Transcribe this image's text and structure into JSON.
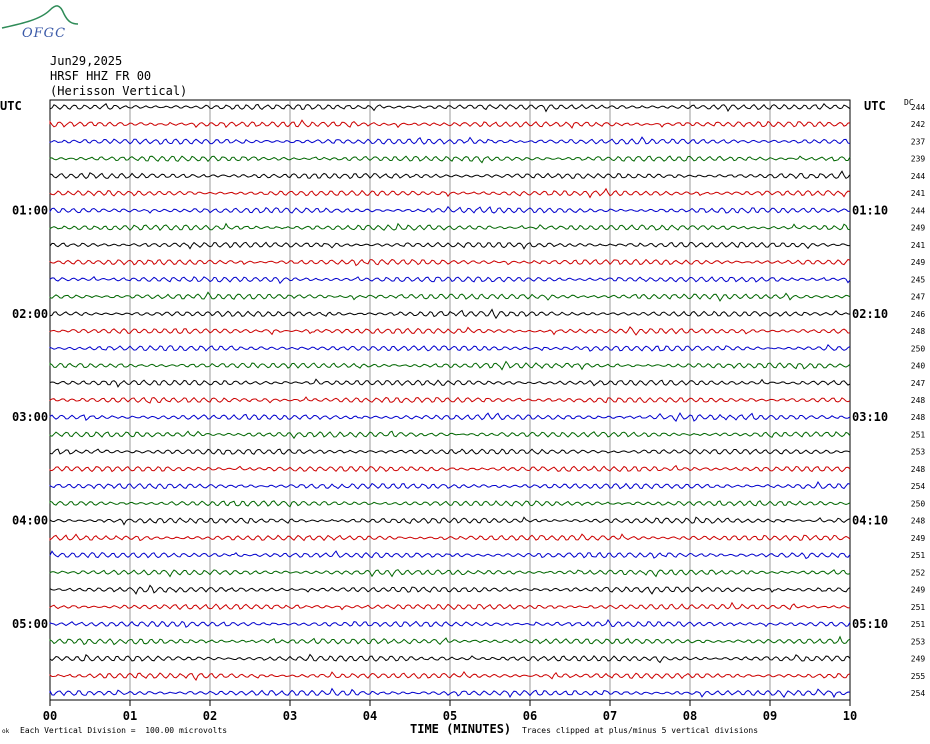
{
  "header": {
    "logo_text": "OFGC",
    "date": "Jun29,2025",
    "station": "HRSF HHZ FR 00",
    "location": "(Herisson Vertical)",
    "left_tz": "UTC",
    "right_tz": "UTC",
    "dc_label": "DC"
  },
  "footer": {
    "division_note": "Each Vertical Division =  100.00 microvolts",
    "clip_note": "Traces clipped at plus/minus 5 vertical divisions",
    "corner_mark": "ok"
  },
  "colors": {
    "trace_cycle": [
      "#000000",
      "#cc0000",
      "#0000cc",
      "#006600"
    ],
    "grid": "#808080",
    "logo": "#2e8b57"
  },
  "chart_data": {
    "type": "line",
    "title": "",
    "xlabel": "TIME (MINUTES)",
    "x_ticks": [
      "00",
      "01",
      "02",
      "03",
      "04",
      "05",
      "06",
      "07",
      "08",
      "09",
      "10"
    ],
    "xlim": [
      0,
      10
    ],
    "row_interval_minutes": 10,
    "left_time_labels": [
      {
        "row": 6,
        "label": "01:00"
      },
      {
        "row": 12,
        "label": "02:00"
      },
      {
        "row": 18,
        "label": "03:00"
      },
      {
        "row": 24,
        "label": "04:00"
      },
      {
        "row": 30,
        "label": "05:00"
      }
    ],
    "right_time_labels": [
      {
        "row": 6,
        "label": "01:10"
      },
      {
        "row": 12,
        "label": "02:10"
      },
      {
        "row": 18,
        "label": "03:10"
      },
      {
        "row": 24,
        "label": "04:10"
      },
      {
        "row": 30,
        "label": "05:10"
      }
    ],
    "dc_offsets": [
      244,
      242,
      237,
      239,
      244,
      241,
      244,
      249,
      241,
      249,
      245,
      247,
      246,
      248,
      250,
      240,
      247,
      248,
      248,
      251,
      253,
      248,
      254,
      250,
      248,
      249,
      251,
      252,
      249,
      251,
      251,
      253,
      249,
      255,
      254
    ],
    "traces": 35
  }
}
